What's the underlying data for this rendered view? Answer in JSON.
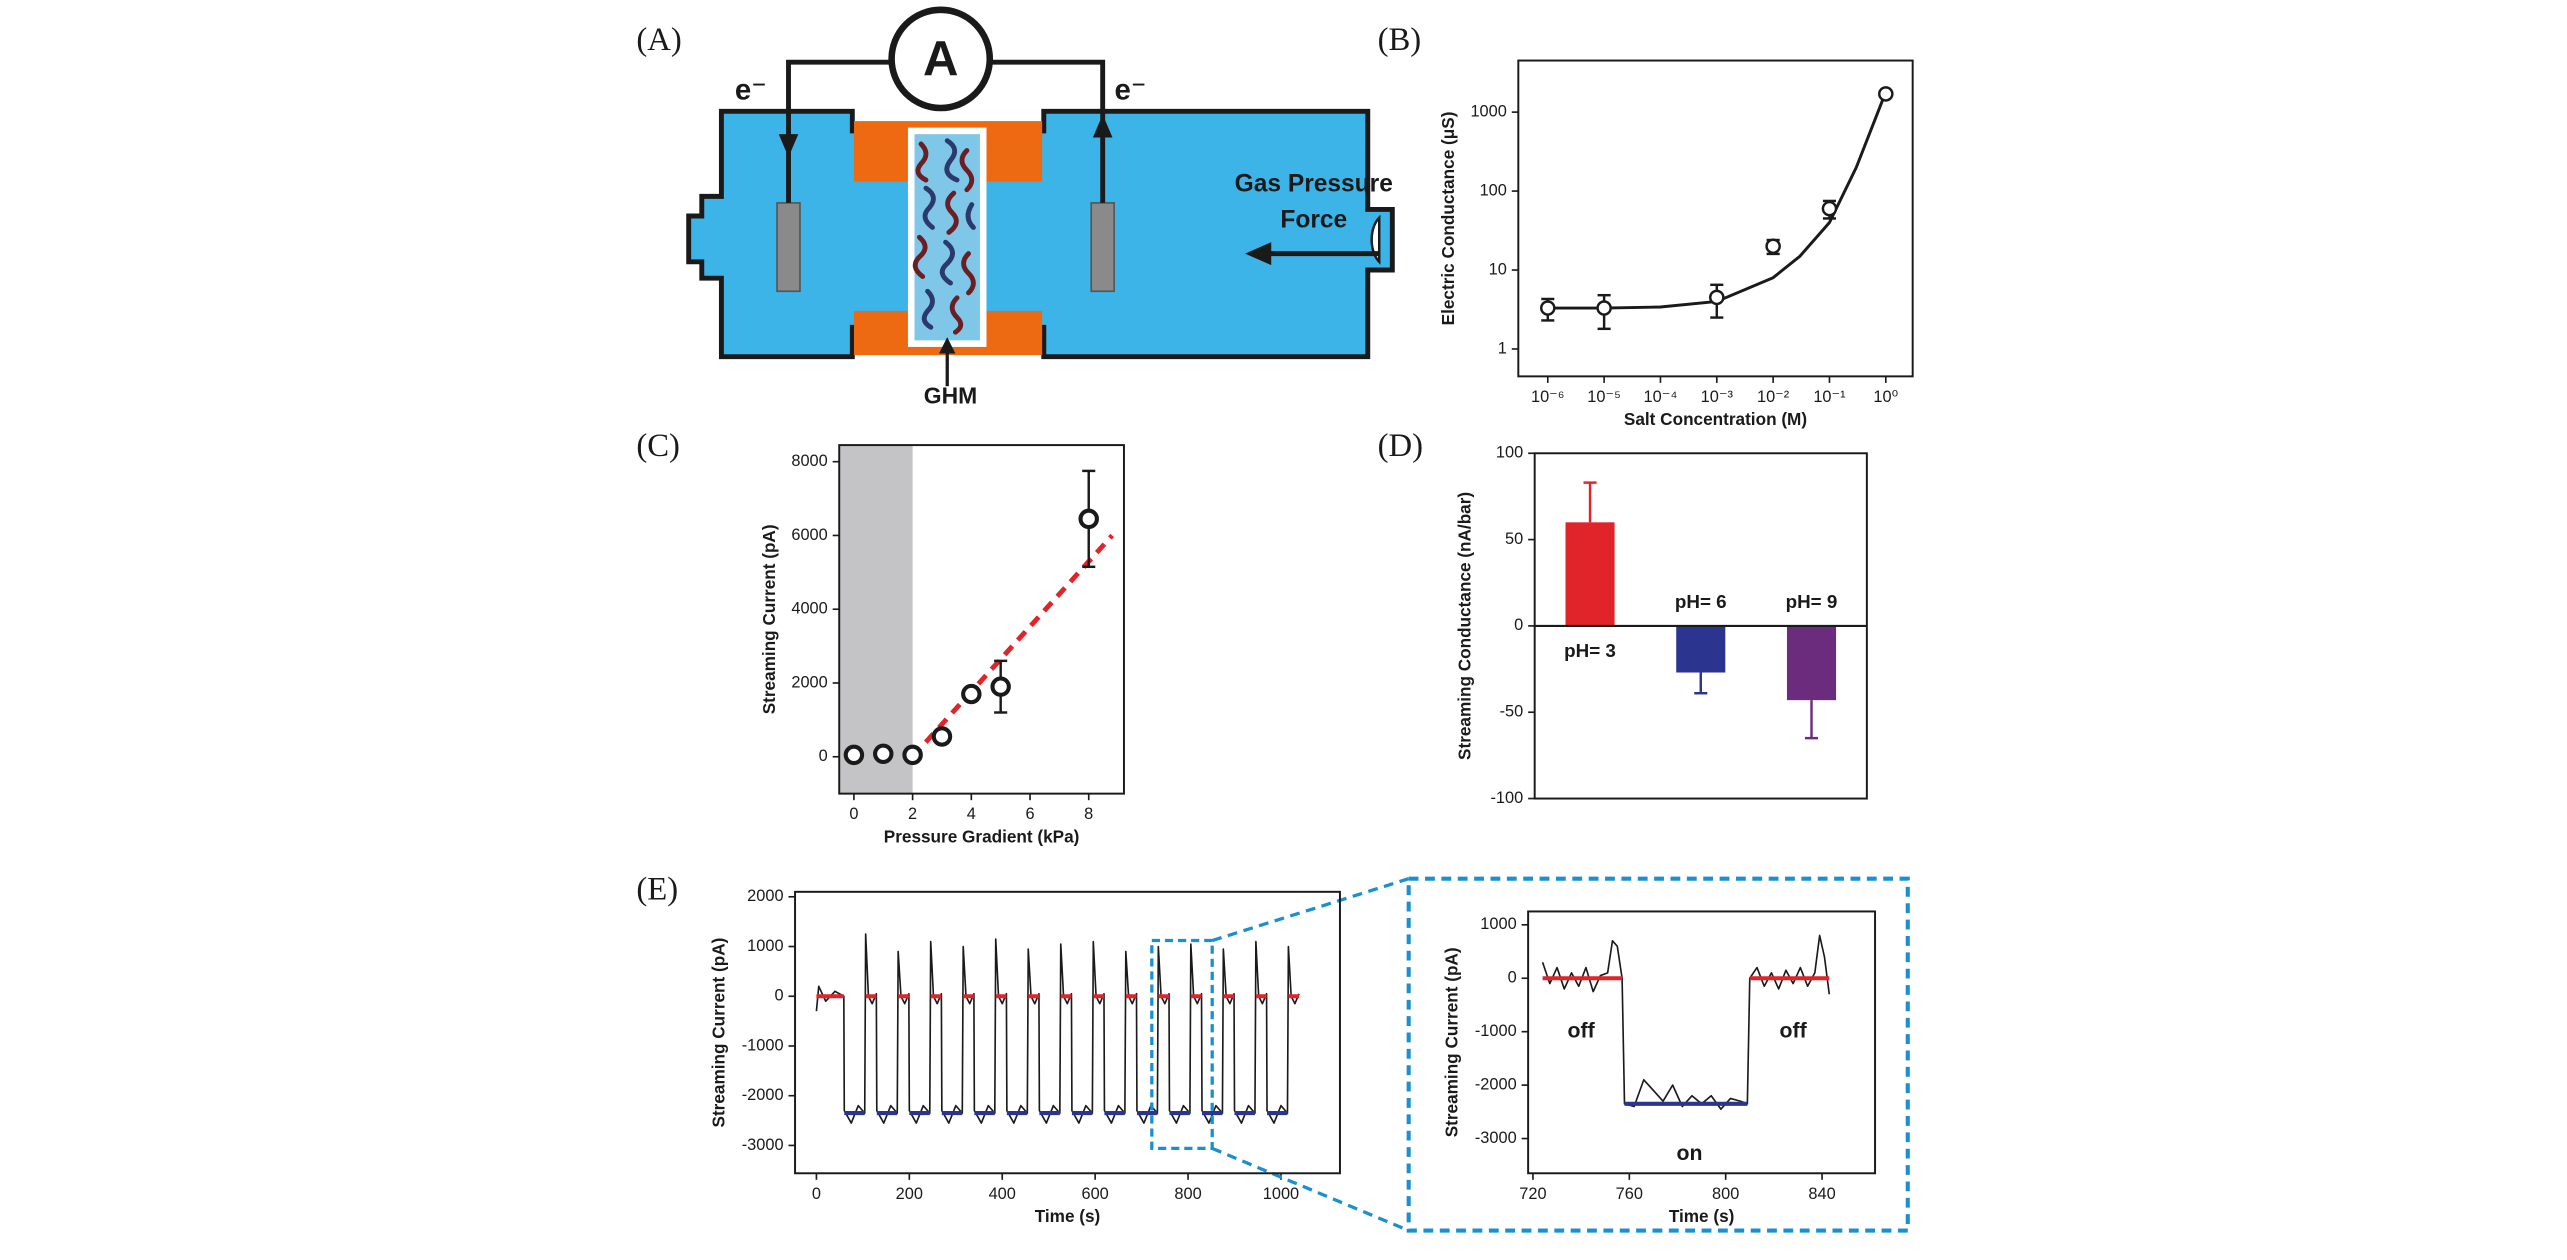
{
  "panel_labels": [
    "(A)",
    "(B)",
    "(C)",
    "(D)",
    "(E)"
  ],
  "diagram": {
    "electron_left": "e⁻",
    "electron_right": "e⁻",
    "ammeter": "A",
    "pressure_line1": "Gas Pressure",
    "pressure_line2": "Force",
    "membrane": "GHM"
  },
  "chart_data": [
    {
      "type": "scatter",
      "xlabel": "Salt Concentration (M)",
      "ylabel": "Electric Conductance (μS)",
      "xscale": "log",
      "yscale": "log",
      "xlim": [
        3e-07,
        3
      ],
      "ylim": [
        0.45,
        4500
      ],
      "xticks": [
        {
          "value": 1e-06,
          "label": "10⁻⁶"
        },
        {
          "value": 1e-05,
          "label": "10⁻⁵"
        },
        {
          "value": 0.0001,
          "label": "10⁻⁴"
        },
        {
          "value": 0.001,
          "label": "10⁻³"
        },
        {
          "value": 0.01,
          "label": "10⁻²"
        },
        {
          "value": 0.1,
          "label": "10⁻¹"
        },
        {
          "value": 1,
          "label": "10⁰"
        }
      ],
      "yticks": [
        1,
        10,
        100,
        1000
      ],
      "points": {
        "x": [
          1e-06,
          1e-05,
          0.001,
          0.01,
          0.1,
          1
        ],
        "values": [
          3.3,
          3.3,
          4.5,
          20,
          60,
          1700
        ],
        "errors": [
          1,
          1.5,
          2,
          4,
          15,
          150
        ],
        "color": "#1a1a1a"
      },
      "fit": {
        "x": [
          1e-06,
          1e-05,
          0.0001,
          0.001,
          0.01,
          0.03,
          0.1,
          0.3,
          1
        ],
        "values": [
          3.3,
          3.3,
          3.4,
          4,
          8,
          15,
          40,
          200,
          1800
        ],
        "color": "#1a1a1a",
        "style": "solid"
      }
    },
    {
      "type": "scatter",
      "xlabel": "Pressure Gradient (kPa)",
      "ylabel": "Streaming Current (pA)",
      "xlim": [
        -0.5,
        9.2
      ],
      "ylim": [
        -1000,
        8450
      ],
      "xticks": [
        0,
        2,
        4,
        6,
        8
      ],
      "yticks": [
        0,
        2000,
        4000,
        6000,
        8000
      ],
      "shade_xlim": [
        -0.5,
        2
      ],
      "shade_color": "#c4c4c6",
      "points": {
        "x": [
          0,
          1,
          2,
          3,
          4,
          5,
          8
        ],
        "values": [
          50,
          80,
          50,
          550,
          1700,
          1900,
          6450
        ],
        "errors": [
          0,
          0,
          0,
          0,
          150,
          700,
          1300
        ],
        "color": "#1a1a1a"
      },
      "fit": {
        "x": [
          2,
          8.8
        ],
        "values": [
          0,
          6000
        ],
        "color": "#e0242a",
        "style": "dashed"
      }
    },
    {
      "type": "bar",
      "ylabel": "Streaming Conductance (nA/bar)",
      "categories": [
        "pH= 3",
        "pH= 6",
        "pH= 9"
      ],
      "values": [
        60,
        -27,
        -43
      ],
      "errors": [
        23,
        12,
        22
      ],
      "colors": [
        "#e0242a",
        "#2b3590",
        "#6b2c7e"
      ],
      "ylim": [
        -100,
        100
      ],
      "yticks": [
        -100,
        -50,
        0,
        50,
        100
      ]
    },
    {
      "type": "line",
      "xlabel": "Time (s)",
      "ylabel": "Streaming Current (pA)",
      "xlim": [
        -46,
        1127
      ],
      "ylim": [
        -3560,
        2100
      ],
      "xticks": [
        0,
        200,
        400,
        600,
        800,
        1000
      ],
      "yticks": [
        -3000,
        -2000,
        -1000,
        0,
        1000,
        2000
      ],
      "zoom": {
        "xlim": [
          722,
          852
        ],
        "ylim": [
          -3060,
          1120
        ],
        "color": "#1a90d0"
      },
      "series": [
        {
          "color": "#1a1a1a",
          "x": [
            0,
            5,
            20,
            40,
            59,
            60,
            75,
            90,
            104,
            106,
            112,
            120,
            129,
            130,
            145,
            160,
            174,
            176,
            182,
            190,
            199,
            200,
            215,
            230,
            244,
            246,
            252,
            260,
            269,
            270,
            285,
            300,
            314,
            316,
            322,
            330,
            339,
            340,
            355,
            370,
            384,
            386,
            392,
            400,
            409,
            410,
            425,
            440,
            454,
            456,
            462,
            470,
            479,
            480,
            495,
            510,
            524,
            526,
            532,
            540,
            549,
            550,
            565,
            580,
            594,
            596,
            602,
            610,
            619,
            620,
            635,
            650,
            664,
            666,
            672,
            680,
            689,
            690,
            705,
            720,
            734,
            736,
            742,
            750,
            759,
            760,
            775,
            790,
            804,
            806,
            812,
            820,
            829,
            830,
            845,
            860,
            874,
            876,
            882,
            890,
            899,
            900,
            915,
            930,
            944,
            946,
            952,
            960,
            969,
            970,
            985,
            1000,
            1014,
            1016,
            1022,
            1030,
            1039
          ],
          "values": [
            -300,
            200,
            -100,
            100,
            0,
            -2300,
            -2550,
            -2200,
            -2350,
            1250,
            0,
            -150,
            50,
            -2300,
            -2550,
            -2200,
            -2350,
            900,
            0,
            -150,
            50,
            -2300,
            -2550,
            -2200,
            -2350,
            1100,
            0,
            -150,
            50,
            -2300,
            -2550,
            -2200,
            -2350,
            1000,
            0,
            -150,
            50,
            -2300,
            -2550,
            -2200,
            -2350,
            1150,
            0,
            -150,
            50,
            -2300,
            -2550,
            -2200,
            -2350,
            950,
            0,
            -150,
            50,
            -2300,
            -2550,
            -2200,
            -2350,
            1050,
            0,
            -150,
            50,
            -2300,
            -2550,
            -2200,
            -2350,
            1100,
            0,
            -150,
            50,
            -2300,
            -2550,
            -2200,
            -2350,
            900,
            0,
            -150,
            50,
            -2300,
            -2550,
            -2200,
            -2350,
            1000,
            0,
            -150,
            50,
            -2300,
            -2550,
            -2200,
            -2350,
            1050,
            0,
            -150,
            50,
            -2300,
            -2550,
            -2200,
            -2350,
            950,
            0,
            -150,
            50,
            -2300,
            -2550,
            -2200,
            -2350,
            1100,
            0,
            -150,
            50,
            -2300,
            -2550,
            -2200,
            -2350,
            1000,
            0,
            -150,
            50
          ]
        },
        {
          "color": "#e0242a",
          "width": 2.5,
          "x": [
            0,
            59,
            60,
            106,
            129,
            130,
            176,
            199,
            200,
            246,
            269,
            270,
            316,
            339,
            340,
            386,
            409,
            410,
            456,
            479,
            480,
            526,
            549,
            550,
            596,
            619,
            620,
            666,
            689,
            690,
            736,
            759,
            760,
            806,
            829,
            830,
            876,
            899,
            900,
            946,
            969,
            970,
            1016,
            1039
          ],
          "values": [
            0,
            0,
            null,
            0,
            0,
            null,
            0,
            0,
            null,
            0,
            0,
            null,
            0,
            0,
            null,
            0,
            0,
            null,
            0,
            0,
            null,
            0,
            0,
            null,
            0,
            0,
            null,
            0,
            0,
            null,
            0,
            0,
            null,
            0,
            0,
            null,
            0,
            0,
            null,
            0,
            0,
            null,
            0,
            0
          ]
        },
        {
          "color": "#2b3590",
          "width": 2.5,
          "x": [
            60,
            104,
            105,
            130,
            174,
            175,
            200,
            244,
            245,
            270,
            314,
            315,
            340,
            384,
            385,
            410,
            454,
            455,
            480,
            524,
            525,
            550,
            594,
            595,
            620,
            664,
            665,
            690,
            734,
            735,
            760,
            804,
            805,
            830,
            874,
            875,
            900,
            944,
            945,
            970,
            1014
          ],
          "values": [
            -2350,
            -2350,
            null,
            -2350,
            -2350,
            null,
            -2350,
            -2350,
            null,
            -2350,
            -2350,
            null,
            -2350,
            -2350,
            null,
            -2350,
            -2350,
            null,
            -2350,
            -2350,
            null,
            -2350,
            -2350,
            null,
            -2350,
            -2350,
            null,
            -2350,
            -2350,
            null,
            -2350,
            -2350,
            null,
            -2350,
            -2350,
            null,
            -2350,
            -2350,
            null,
            -2350,
            -2350
          ]
        }
      ]
    },
    {
      "type": "line",
      "xlabel": "Time (s)",
      "ylabel": "Streaming Current (pA)",
      "xlim": [
        718,
        862
      ],
      "ylim": [
        -3650,
        1250
      ],
      "xticks": [
        720,
        760,
        800,
        840
      ],
      "yticks": [
        -3000,
        -2000,
        -1000,
        0,
        1000
      ],
      "annotations": [
        {
          "text": "off",
          "color": "#e0242a"
        },
        {
          "text": "on",
          "color": "#2b3590"
        },
        {
          "text": "off",
          "color": "#e0242a"
        }
      ],
      "series": [
        {
          "color": "#1a1a1a",
          "x": [
            724,
            727,
            730,
            733,
            736,
            739,
            742,
            745,
            748,
            751,
            753,
            755,
            757,
            758,
            762,
            766,
            770,
            774,
            778,
            782,
            786,
            790,
            794,
            798,
            802,
            806,
            809,
            810,
            813,
            816,
            819,
            822,
            825,
            828,
            831,
            834,
            837,
            839,
            841,
            843
          ],
          "values": [
            300,
            -100,
            200,
            -200,
            100,
            -150,
            200,
            -250,
            50,
            100,
            700,
            600,
            0,
            -2350,
            -2400,
            -1900,
            -2100,
            -2300,
            -2000,
            -2400,
            -2200,
            -2350,
            -2200,
            -2450,
            -2250,
            -2300,
            -2350,
            0,
            200,
            -150,
            100,
            -200,
            150,
            -100,
            200,
            -150,
            100,
            800,
            400,
            -300
          ]
        },
        {
          "color": "#e0242a",
          "width": 2.5,
          "x": [
            724,
            757,
            758,
            810,
            843
          ],
          "values": [
            0,
            0,
            null,
            0,
            0
          ]
        },
        {
          "color": "#2b3590",
          "width": 2.5,
          "x": [
            758,
            809
          ],
          "values": [
            -2350,
            -2350
          ]
        }
      ]
    }
  ]
}
